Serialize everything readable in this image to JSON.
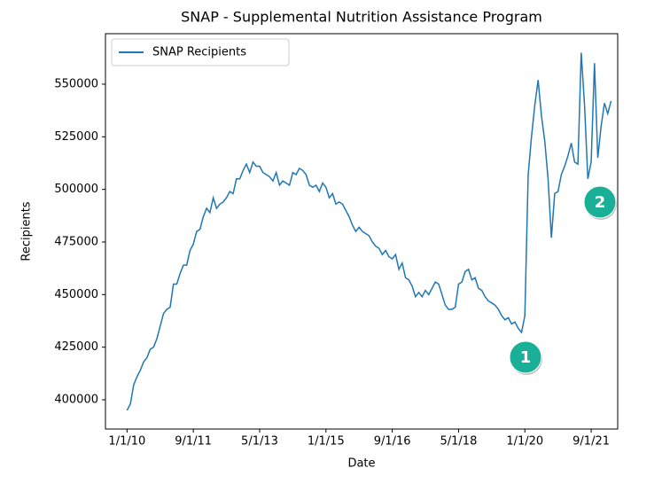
{
  "chart_data": {
    "type": "line",
    "title": "SNAP - Supplemental Nutrition Assistance Program",
    "x_label": "Date",
    "y_label": "Recipients",
    "legend": "upper left",
    "x": [
      "2010-01-01",
      "2010-02-01",
      "2010-03-01",
      "2010-04-01",
      "2010-05-01",
      "2010-06-01",
      "2010-07-01",
      "2010-08-01",
      "2010-09-01",
      "2010-10-01",
      "2010-11-01",
      "2010-12-01",
      "2011-01-01",
      "2011-02-01",
      "2011-03-01",
      "2011-04-01",
      "2011-05-01",
      "2011-06-01",
      "2011-07-01",
      "2011-08-01",
      "2011-09-01",
      "2011-10-01",
      "2011-11-01",
      "2011-12-01",
      "2012-01-01",
      "2012-02-01",
      "2012-03-01",
      "2012-04-01",
      "2012-05-01",
      "2012-06-01",
      "2012-07-01",
      "2012-08-01",
      "2012-09-01",
      "2012-10-01",
      "2012-11-01",
      "2012-12-01",
      "2013-01-01",
      "2013-02-01",
      "2013-03-01",
      "2013-04-01",
      "2013-05-01",
      "2013-06-01",
      "2013-07-01",
      "2013-08-01",
      "2013-09-01",
      "2013-10-01",
      "2013-11-01",
      "2013-12-01",
      "2014-01-01",
      "2014-02-01",
      "2014-03-01",
      "2014-04-01",
      "2014-05-01",
      "2014-06-01",
      "2014-07-01",
      "2014-08-01",
      "2014-09-01",
      "2014-10-01",
      "2014-11-01",
      "2014-12-01",
      "2015-01-01",
      "2015-02-01",
      "2015-03-01",
      "2015-04-01",
      "2015-05-01",
      "2015-06-01",
      "2015-07-01",
      "2015-08-01",
      "2015-09-01",
      "2015-10-01",
      "2015-11-01",
      "2015-12-01",
      "2016-01-01",
      "2016-02-01",
      "2016-03-01",
      "2016-04-01",
      "2016-05-01",
      "2016-06-01",
      "2016-07-01",
      "2016-08-01",
      "2016-09-01",
      "2016-10-01",
      "2016-11-01",
      "2016-12-01",
      "2017-01-01",
      "2017-02-01",
      "2017-03-01",
      "2017-04-01",
      "2017-05-01",
      "2017-06-01",
      "2017-07-01",
      "2017-08-01",
      "2017-09-01",
      "2017-10-01",
      "2017-11-01",
      "2017-12-01",
      "2018-01-01",
      "2018-02-01",
      "2018-03-01",
      "2018-04-01",
      "2018-05-01",
      "2018-06-01",
      "2018-07-01",
      "2018-08-01",
      "2018-09-01",
      "2018-10-01",
      "2018-11-01",
      "2018-12-01",
      "2019-01-01",
      "2019-02-01",
      "2019-03-01",
      "2019-04-01",
      "2019-05-01",
      "2019-06-01",
      "2019-07-01",
      "2019-08-01",
      "2019-09-01",
      "2019-10-01",
      "2019-11-01",
      "2019-12-01",
      "2020-01-01",
      "2020-02-01",
      "2020-03-01",
      "2020-04-01",
      "2020-05-01",
      "2020-06-01",
      "2020-07-01",
      "2020-08-01",
      "2020-09-01",
      "2020-10-01",
      "2020-11-01",
      "2020-12-01",
      "2021-01-01",
      "2021-02-01",
      "2021-03-01",
      "2021-04-01",
      "2021-05-01",
      "2021-06-01",
      "2021-07-01",
      "2021-08-01",
      "2021-09-01",
      "2021-10-01",
      "2021-11-01",
      "2021-12-01",
      "2022-01-01",
      "2022-02-01",
      "2022-03-01"
    ],
    "series": [
      {
        "name": "SNAP Recipients",
        "color": "#1f77b4",
        "values": [
          395000,
          398000,
          407000,
          411000,
          414000,
          418000,
          420000,
          424000,
          425000,
          429000,
          435000,
          441000,
          443000,
          444000,
          455000,
          455000,
          460000,
          464000,
          464000,
          471000,
          474000,
          480000,
          481000,
          487000,
          491000,
          489000,
          496000,
          491000,
          493000,
          494000,
          496000,
          499000,
          498000,
          505000,
          505000,
          509000,
          512000,
          508000,
          513000,
          511000,
          511000,
          508000,
          507000,
          506000,
          504000,
          508000,
          502000,
          504000,
          503000,
          502000,
          508000,
          507000,
          510000,
          509000,
          507000,
          502000,
          501000,
          502000,
          499000,
          503000,
          501000,
          496000,
          498000,
          493000,
          494000,
          493000,
          490000,
          487000,
          483000,
          480000,
          482000,
          480000,
          479000,
          478000,
          475000,
          473000,
          472000,
          469000,
          471000,
          468000,
          467000,
          469000,
          462000,
          465000,
          458000,
          457000,
          454000,
          449000,
          451000,
          449000,
          452000,
          450000,
          453000,
          456000,
          455000,
          450000,
          445000,
          443000,
          443000,
          444000,
          455000,
          456000,
          461000,
          462000,
          457000,
          458000,
          453000,
          452000,
          449000,
          447000,
          446000,
          445000,
          443000,
          440000,
          438000,
          439000,
          436000,
          437000,
          434000,
          432000,
          440000,
          507000,
          525000,
          540000,
          552000,
          535000,
          523000,
          505000,
          477000,
          498000,
          499000,
          507000,
          511000,
          516000,
          522000,
          513000,
          512000,
          565000,
          540000,
          505000,
          513000,
          560000,
          515000,
          530000,
          541000,
          536000,
          542000
        ]
      }
    ],
    "xlim": [
      "2009-06-16",
      "2022-05-01"
    ],
    "xticks": [
      {
        "value": "2010-01-01",
        "label": "1/1/10"
      },
      {
        "value": "2011-09-01",
        "label": "9/1/11"
      },
      {
        "value": "2013-05-01",
        "label": "5/1/13"
      },
      {
        "value": "2015-01-01",
        "label": "1/1/15"
      },
      {
        "value": "2016-09-01",
        "label": "9/1/16"
      },
      {
        "value": "2018-05-01",
        "label": "5/1/18"
      },
      {
        "value": "2020-01-01",
        "label": "1/1/20"
      },
      {
        "value": "2021-09-01",
        "label": "9/1/21"
      }
    ],
    "ylim": [
      386100,
      574000
    ],
    "yticks": [
      400000,
      425000,
      450000,
      475000,
      500000,
      525000,
      550000
    ],
    "annotations": [
      "1",
      "2"
    ]
  }
}
